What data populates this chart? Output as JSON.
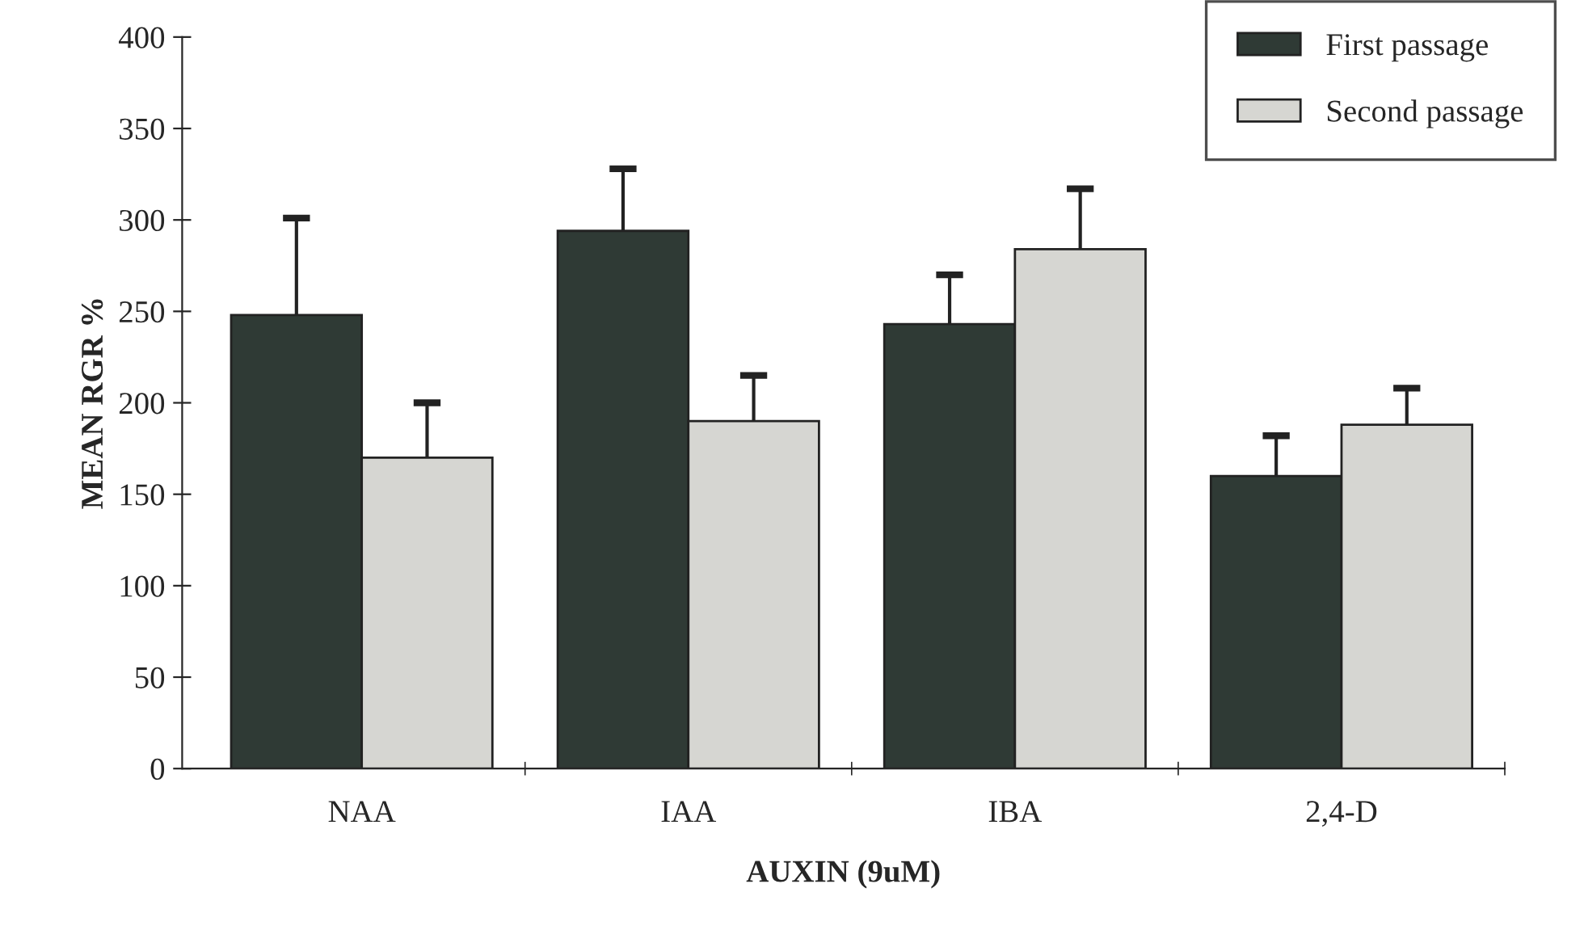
{
  "chart_data": {
    "type": "bar",
    "xlabel": "AUXIN (9uM)",
    "ylabel": "MEAN RGR %",
    "categories": [
      "NAA",
      "IAA",
      "IBA",
      "2,4-D"
    ],
    "series": [
      {
        "name": "First passage",
        "color": "#2f3a35",
        "values": [
          248,
          294,
          243,
          160
        ],
        "errors": [
          53,
          34,
          27,
          22
        ]
      },
      {
        "name": "Second passage",
        "color": "#d6d6d2",
        "values": [
          170,
          190,
          284,
          188
        ],
        "errors": [
          30,
          25,
          33,
          20
        ]
      }
    ],
    "ylim": [
      0,
      400
    ],
    "yticks": [
      0,
      50,
      100,
      150,
      200,
      250,
      300,
      350,
      400
    ],
    "grid": false,
    "legend": "top right"
  }
}
